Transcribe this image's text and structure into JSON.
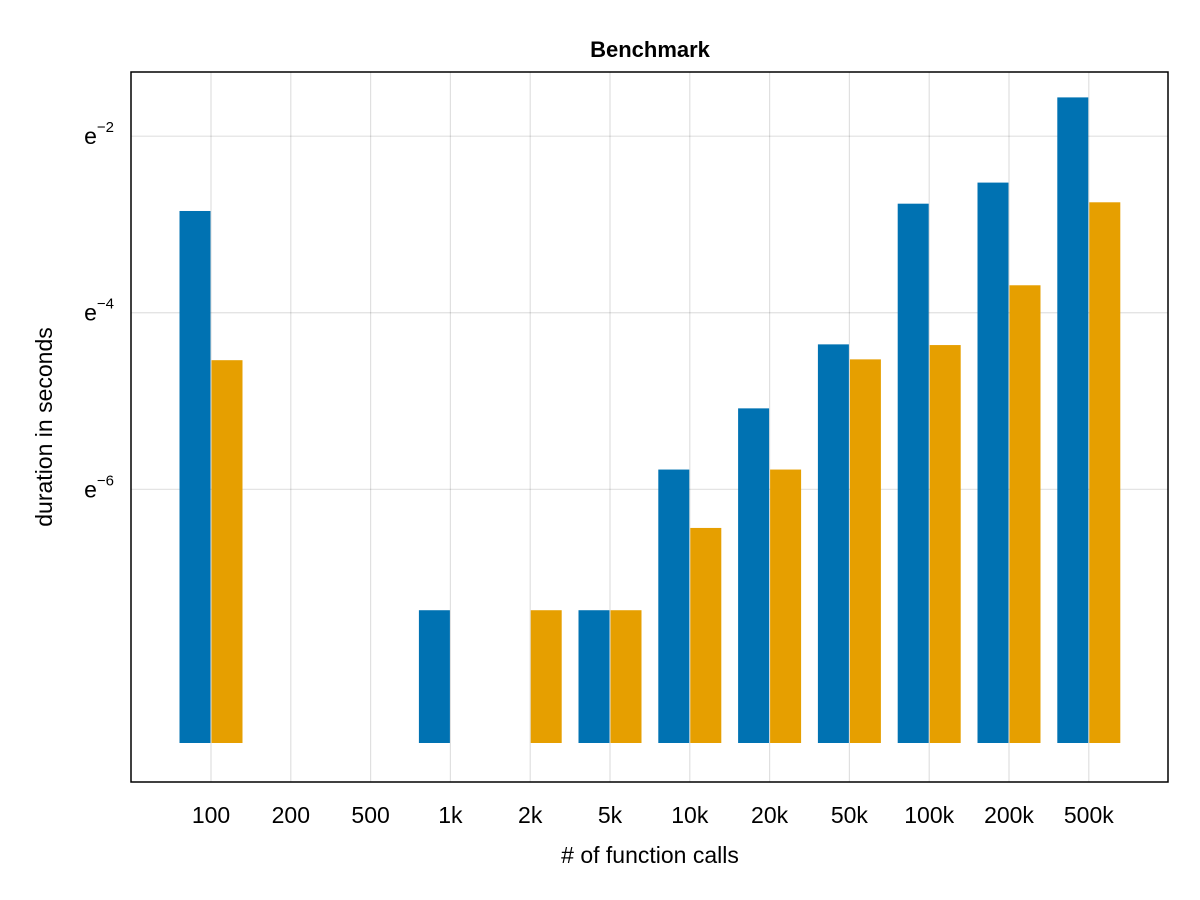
{
  "chart_data": {
    "type": "bar",
    "title": "Benchmark",
    "xlabel": "# of function calls",
    "ylabel": "duration in seconds",
    "y_scale": "log",
    "y_log_base": "e",
    "y_baseline": 0.00014,
    "ylim": [
      9e-05,
      0.28
    ],
    "yticks": [
      {
        "value": 0.0024788,
        "base": "e",
        "exponent": "−6"
      },
      {
        "value": 0.0183156,
        "base": "e",
        "exponent": "−4"
      },
      {
        "value": 0.1353353,
        "base": "e",
        "exponent": "−2"
      }
    ],
    "categories": [
      "100",
      "200",
      "500",
      "1k",
      "2k",
      "5k",
      "10k",
      "20k",
      "50k",
      "100k",
      "200k",
      "500k"
    ],
    "grid": true,
    "legend": "none",
    "series": [
      {
        "color": "#0072b2",
        "values": [
          0.058,
          null,
          null,
          0.00063,
          null,
          0.00063,
          0.0031,
          0.0062,
          0.0128,
          0.063,
          0.08,
          0.21
        ]
      },
      {
        "color": "#e69f00",
        "values": [
          0.0107,
          null,
          null,
          null,
          0.00063,
          0.00063,
          0.0016,
          0.0031,
          0.0108,
          0.0127,
          0.025,
          0.064
        ]
      }
    ]
  }
}
